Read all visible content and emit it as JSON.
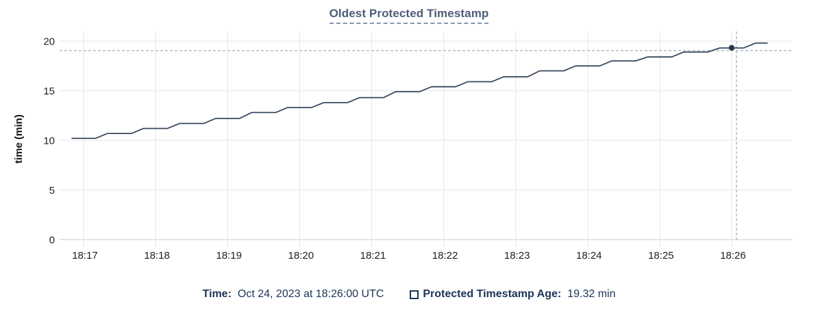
{
  "title": "Oldest Protected Timestamp",
  "colors": {
    "title": "#4e5c78",
    "title_underline": "#8496b1",
    "legend_text": "#1a3457",
    "series_line": "#38485f",
    "hover_dot": "#283a52",
    "crosshair": "#a5b7c3",
    "gridline": "#ebebeb",
    "axis_line": "#d4d4d4",
    "tick_text": "#1f1f1f"
  },
  "chart_data": {
    "type": "line",
    "title": "Oldest Protected Timestamp",
    "xlabel": "",
    "ylabel": "time (min)",
    "ylim": [
      0,
      20
    ],
    "y_ticks": [
      0,
      5,
      10,
      15,
      20
    ],
    "x_ticks": [
      "18:17",
      "18:18",
      "18:19",
      "18:20",
      "18:21",
      "18:22",
      "18:23",
      "18:24",
      "18:25",
      "18:26"
    ],
    "grid": true,
    "legend_position": "bottom",
    "series": [
      {
        "name": "Protected Timestamp Age",
        "unit": "min",
        "points": [
          [
            "18:16:50",
            10.2
          ],
          [
            "18:17:10",
            10.2
          ],
          [
            "18:17:20",
            10.7
          ],
          [
            "18:17:40",
            10.7
          ],
          [
            "18:17:50",
            11.2
          ],
          [
            "18:18:10",
            11.2
          ],
          [
            "18:18:20",
            11.7
          ],
          [
            "18:18:40",
            11.7
          ],
          [
            "18:18:50",
            12.2
          ],
          [
            "18:19:10",
            12.2
          ],
          [
            "18:19:20",
            12.8
          ],
          [
            "18:19:40",
            12.8
          ],
          [
            "18:19:50",
            13.3
          ],
          [
            "18:20:10",
            13.3
          ],
          [
            "18:20:20",
            13.8
          ],
          [
            "18:20:40",
            13.8
          ],
          [
            "18:20:50",
            14.3
          ],
          [
            "18:21:10",
            14.3
          ],
          [
            "18:21:20",
            14.9
          ],
          [
            "18:21:40",
            14.9
          ],
          [
            "18:21:50",
            15.4
          ],
          [
            "18:22:10",
            15.4
          ],
          [
            "18:22:20",
            15.9
          ],
          [
            "18:22:40",
            15.9
          ],
          [
            "18:22:50",
            16.4
          ],
          [
            "18:23:10",
            16.4
          ],
          [
            "18:23:20",
            17.0
          ],
          [
            "18:23:40",
            17.0
          ],
          [
            "18:23:50",
            17.5
          ],
          [
            "18:24:10",
            17.5
          ],
          [
            "18:24:20",
            18.0
          ],
          [
            "18:24:40",
            18.0
          ],
          [
            "18:24:50",
            18.4
          ],
          [
            "18:25:10",
            18.4
          ],
          [
            "18:25:20",
            18.9
          ],
          [
            "18:25:40",
            18.9
          ],
          [
            "18:25:50",
            19.3
          ],
          [
            "18:26:10",
            19.3
          ],
          [
            "18:26:20",
            19.8
          ],
          [
            "18:26:30",
            19.8
          ]
        ]
      }
    ],
    "hover_point": {
      "time": "18:26:00",
      "value": 19.32
    }
  },
  "legend": {
    "time_label": "Time:",
    "time_value": "Oct 24, 2023 at 18:26:00 UTC",
    "series_label": "Protected Timestamp Age:",
    "series_value": "19.32 min"
  }
}
